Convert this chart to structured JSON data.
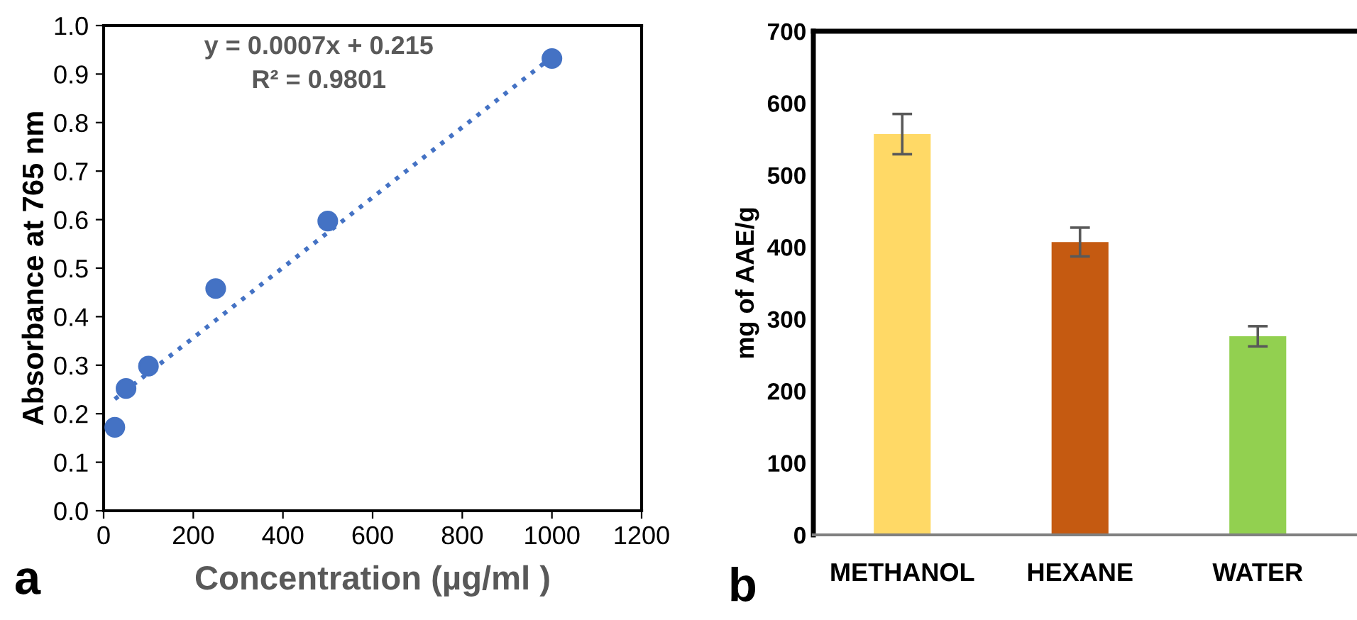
{
  "chart_data": [
    {
      "type": "scatter",
      "xlabel": "Concentration (µg/ml )",
      "ylabel": "Absorbance at 765 nm",
      "series": [
        {
          "type": "scatter",
          "color": "#4472c4",
          "marker": "circle",
          "x": [
            25,
            50,
            100,
            250,
            500,
            1000
          ],
          "values": [
            0.172,
            0.252,
            0.298,
            0.458,
            0.597,
            0.932
          ]
        },
        {
          "type": "line",
          "color": "#4472c4",
          "line_style": "dotted",
          "marker": "none",
          "x": [
            25,
            1000
          ],
          "values": [
            0.23,
            0.935
          ]
        }
      ],
      "xlim": [
        0,
        1200
      ],
      "xticks": [
        0,
        200,
        400,
        600,
        800,
        1000,
        1200
      ],
      "ylim": [
        0,
        1
      ],
      "yticks": [
        {
          "value": 0,
          "label": "0.0"
        },
        0.1,
        0.2,
        0.3,
        0.4,
        0.5,
        0.6,
        0.7,
        0.8,
        0.9,
        {
          "value": 1,
          "label": "1.0"
        }
      ],
      "annotations": [
        "y = 0.0007x + 0.215",
        "R² = 0.9801",
        "a"
      ]
    },
    {
      "type": "bar",
      "ylabel": "mg of AAE/g",
      "categories": [
        "METHANOL",
        "HEXANE",
        "WATER"
      ],
      "values": [
        557,
        407,
        276
      ],
      "colors": [
        "#ffd966",
        "#c55a11",
        "#92d050"
      ],
      "errors": [
        28,
        20,
        14
      ],
      "ylim": [
        0,
        700
      ],
      "yticks": [
        0,
        100,
        200,
        300,
        400,
        500,
        600,
        700
      ],
      "annotations": [
        "b"
      ]
    }
  ]
}
